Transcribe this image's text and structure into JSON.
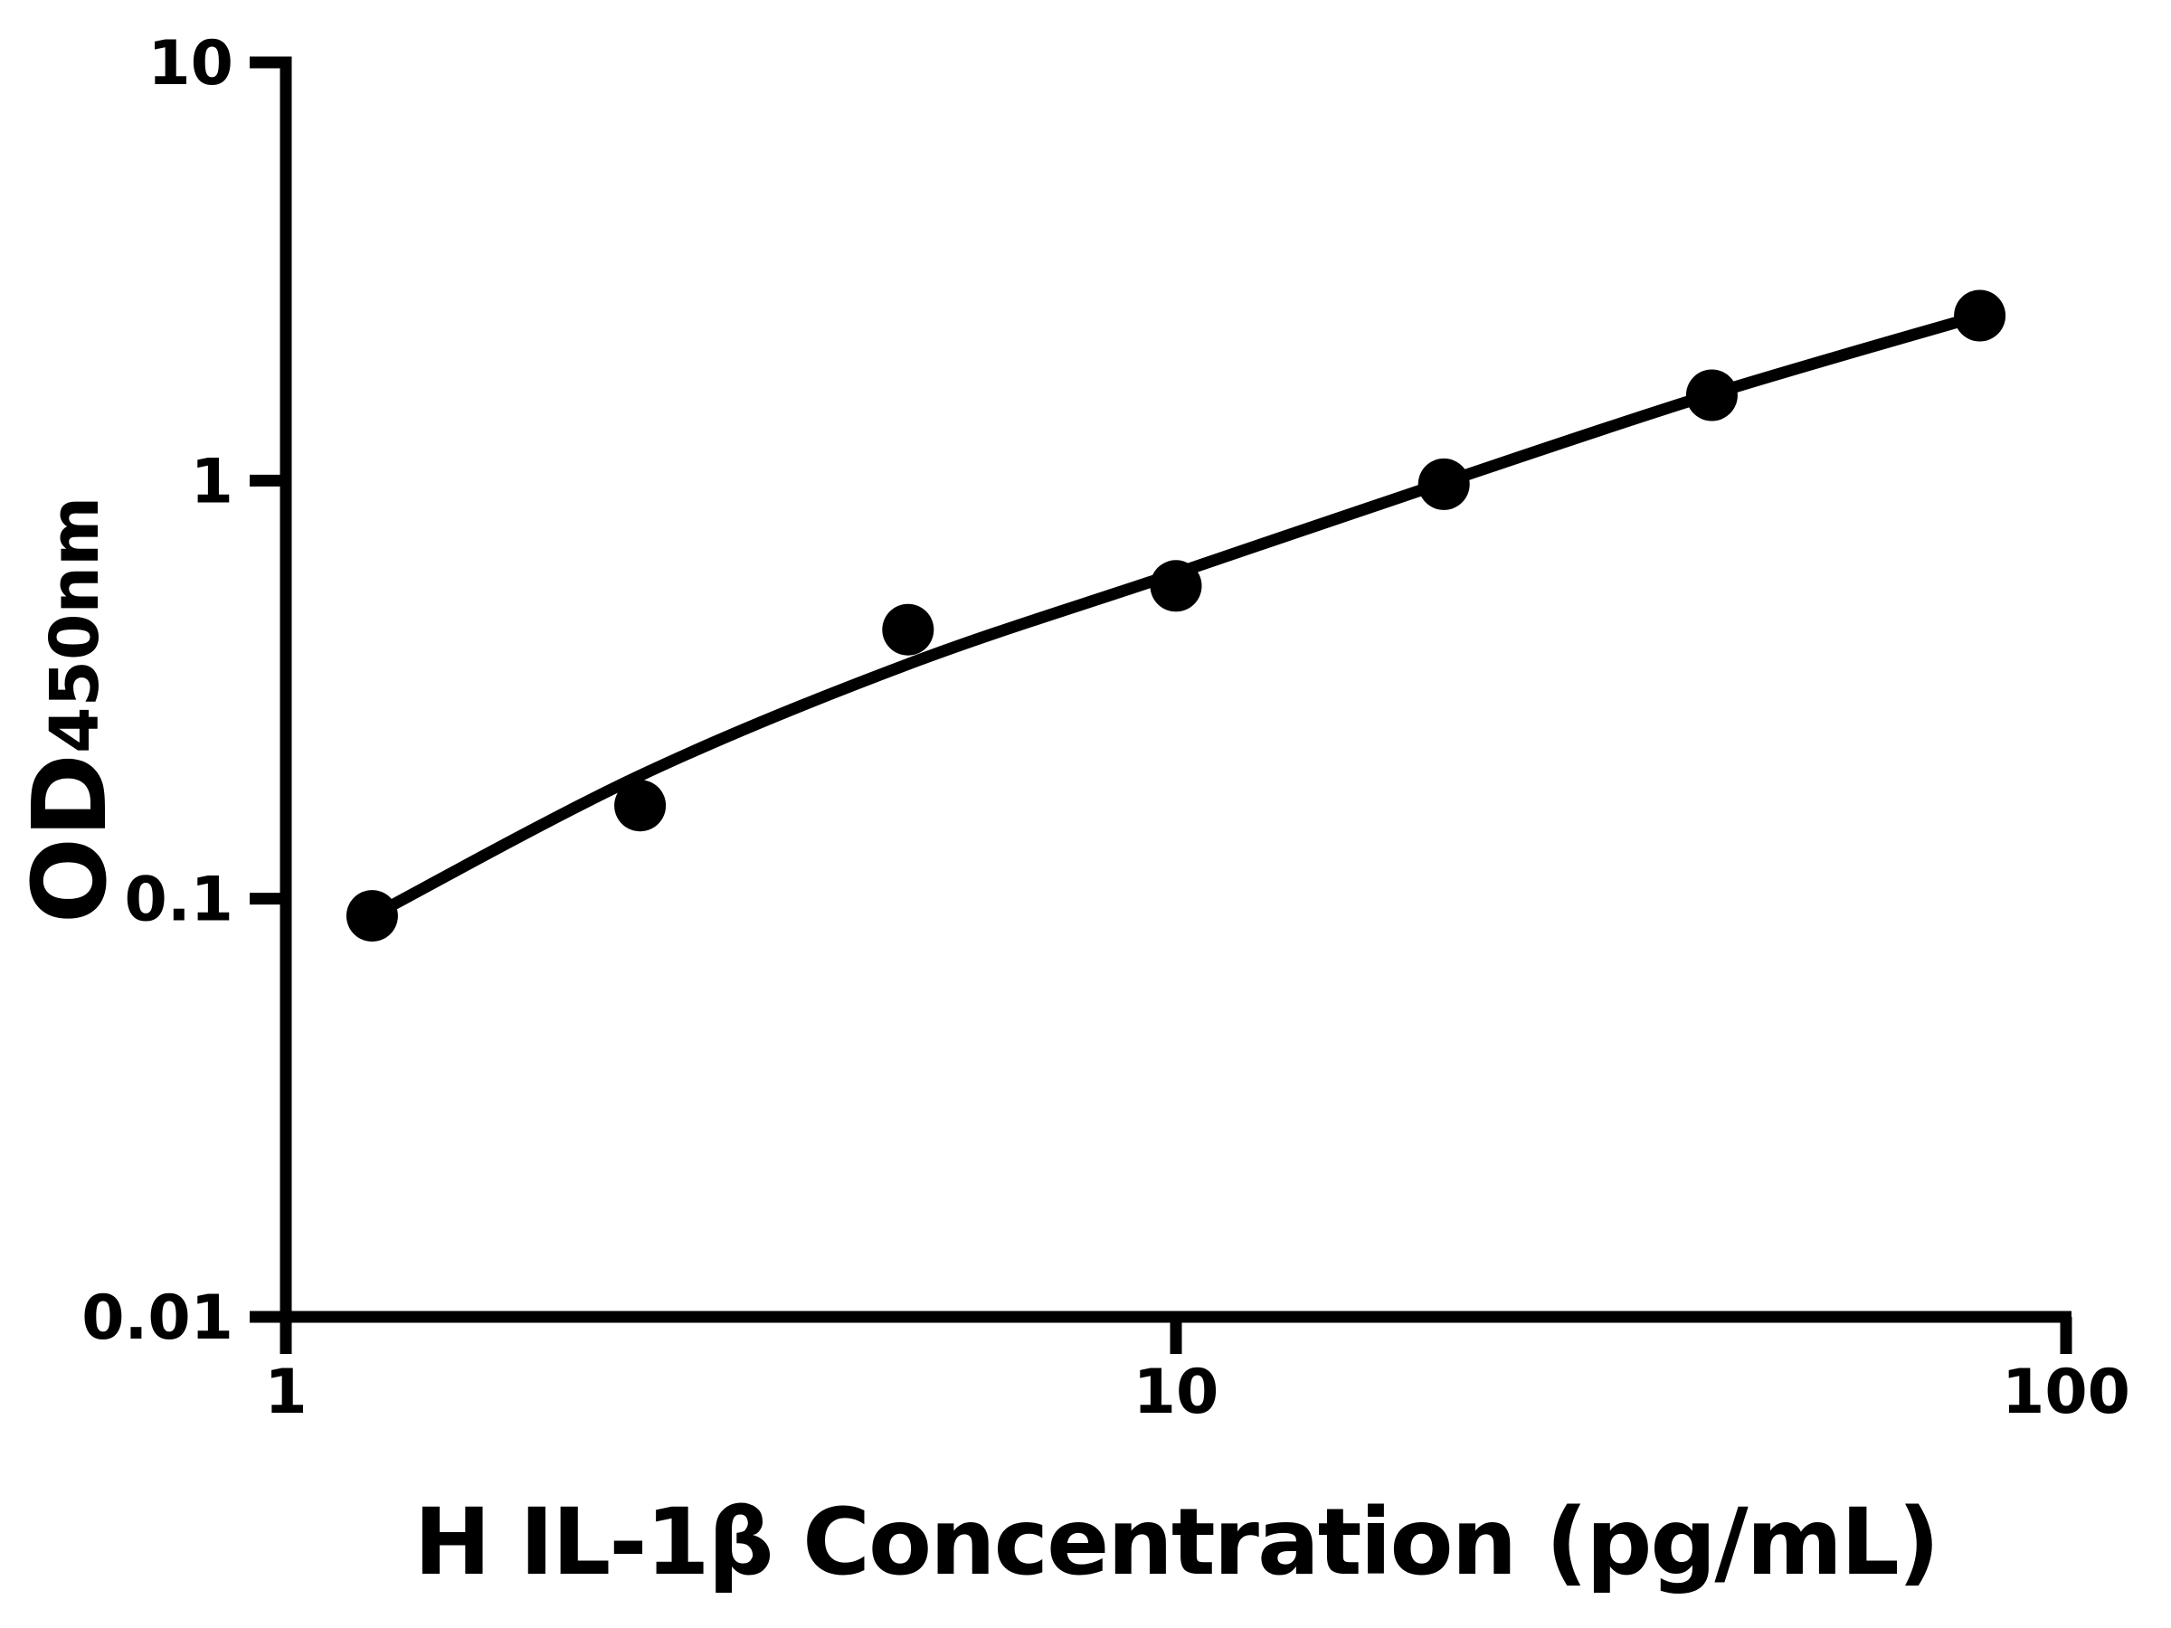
{
  "figure": {
    "background": "#ffffff",
    "ink_color": "#000000"
  },
  "chart_data": {
    "type": "scatter",
    "title": "",
    "xlabel": "H IL-1β Concentration (pg/mL)",
    "ylabel_main": "OD",
    "ylabel_sub": "450nm",
    "x_scale": "log",
    "y_scale": "log",
    "xlim": [
      1,
      100
    ],
    "ylim": [
      0.01,
      10
    ],
    "grid": "off",
    "legend": "none",
    "x_ticks": [
      {
        "value": 1,
        "label": "1"
      },
      {
        "value": 10,
        "label": "10"
      },
      {
        "value": 100,
        "label": "100"
      }
    ],
    "y_ticks": [
      {
        "value": 10,
        "label": "10"
      },
      {
        "value": 1,
        "label": "1"
      },
      {
        "value": 0.1,
        "label": "0.1"
      },
      {
        "value": 0.01,
        "label": "0.01"
      }
    ],
    "series": [
      {
        "name": "standard-points",
        "type": "scatter",
        "marker": "circle",
        "color": "#000000",
        "points": [
          {
            "x": 1.25,
            "y": 0.091
          },
          {
            "x": 2.5,
            "y": 0.167
          },
          {
            "x": 5,
            "y": 0.44
          },
          {
            "x": 10,
            "y": 0.56
          },
          {
            "x": 20,
            "y": 0.98
          },
          {
            "x": 40,
            "y": 1.6
          },
          {
            "x": 80,
            "y": 2.48
          }
        ]
      },
      {
        "name": "fitted-curve",
        "type": "line",
        "color": "#000000",
        "points": [
          {
            "x": 1.25,
            "y": 0.091
          },
          {
            "x": 2.5,
            "y": 0.197
          },
          {
            "x": 5,
            "y": 0.364
          },
          {
            "x": 10,
            "y": 0.6
          },
          {
            "x": 20,
            "y": 0.99
          },
          {
            "x": 40,
            "y": 1.61
          },
          {
            "x": 80,
            "y": 2.48
          }
        ]
      }
    ]
  }
}
